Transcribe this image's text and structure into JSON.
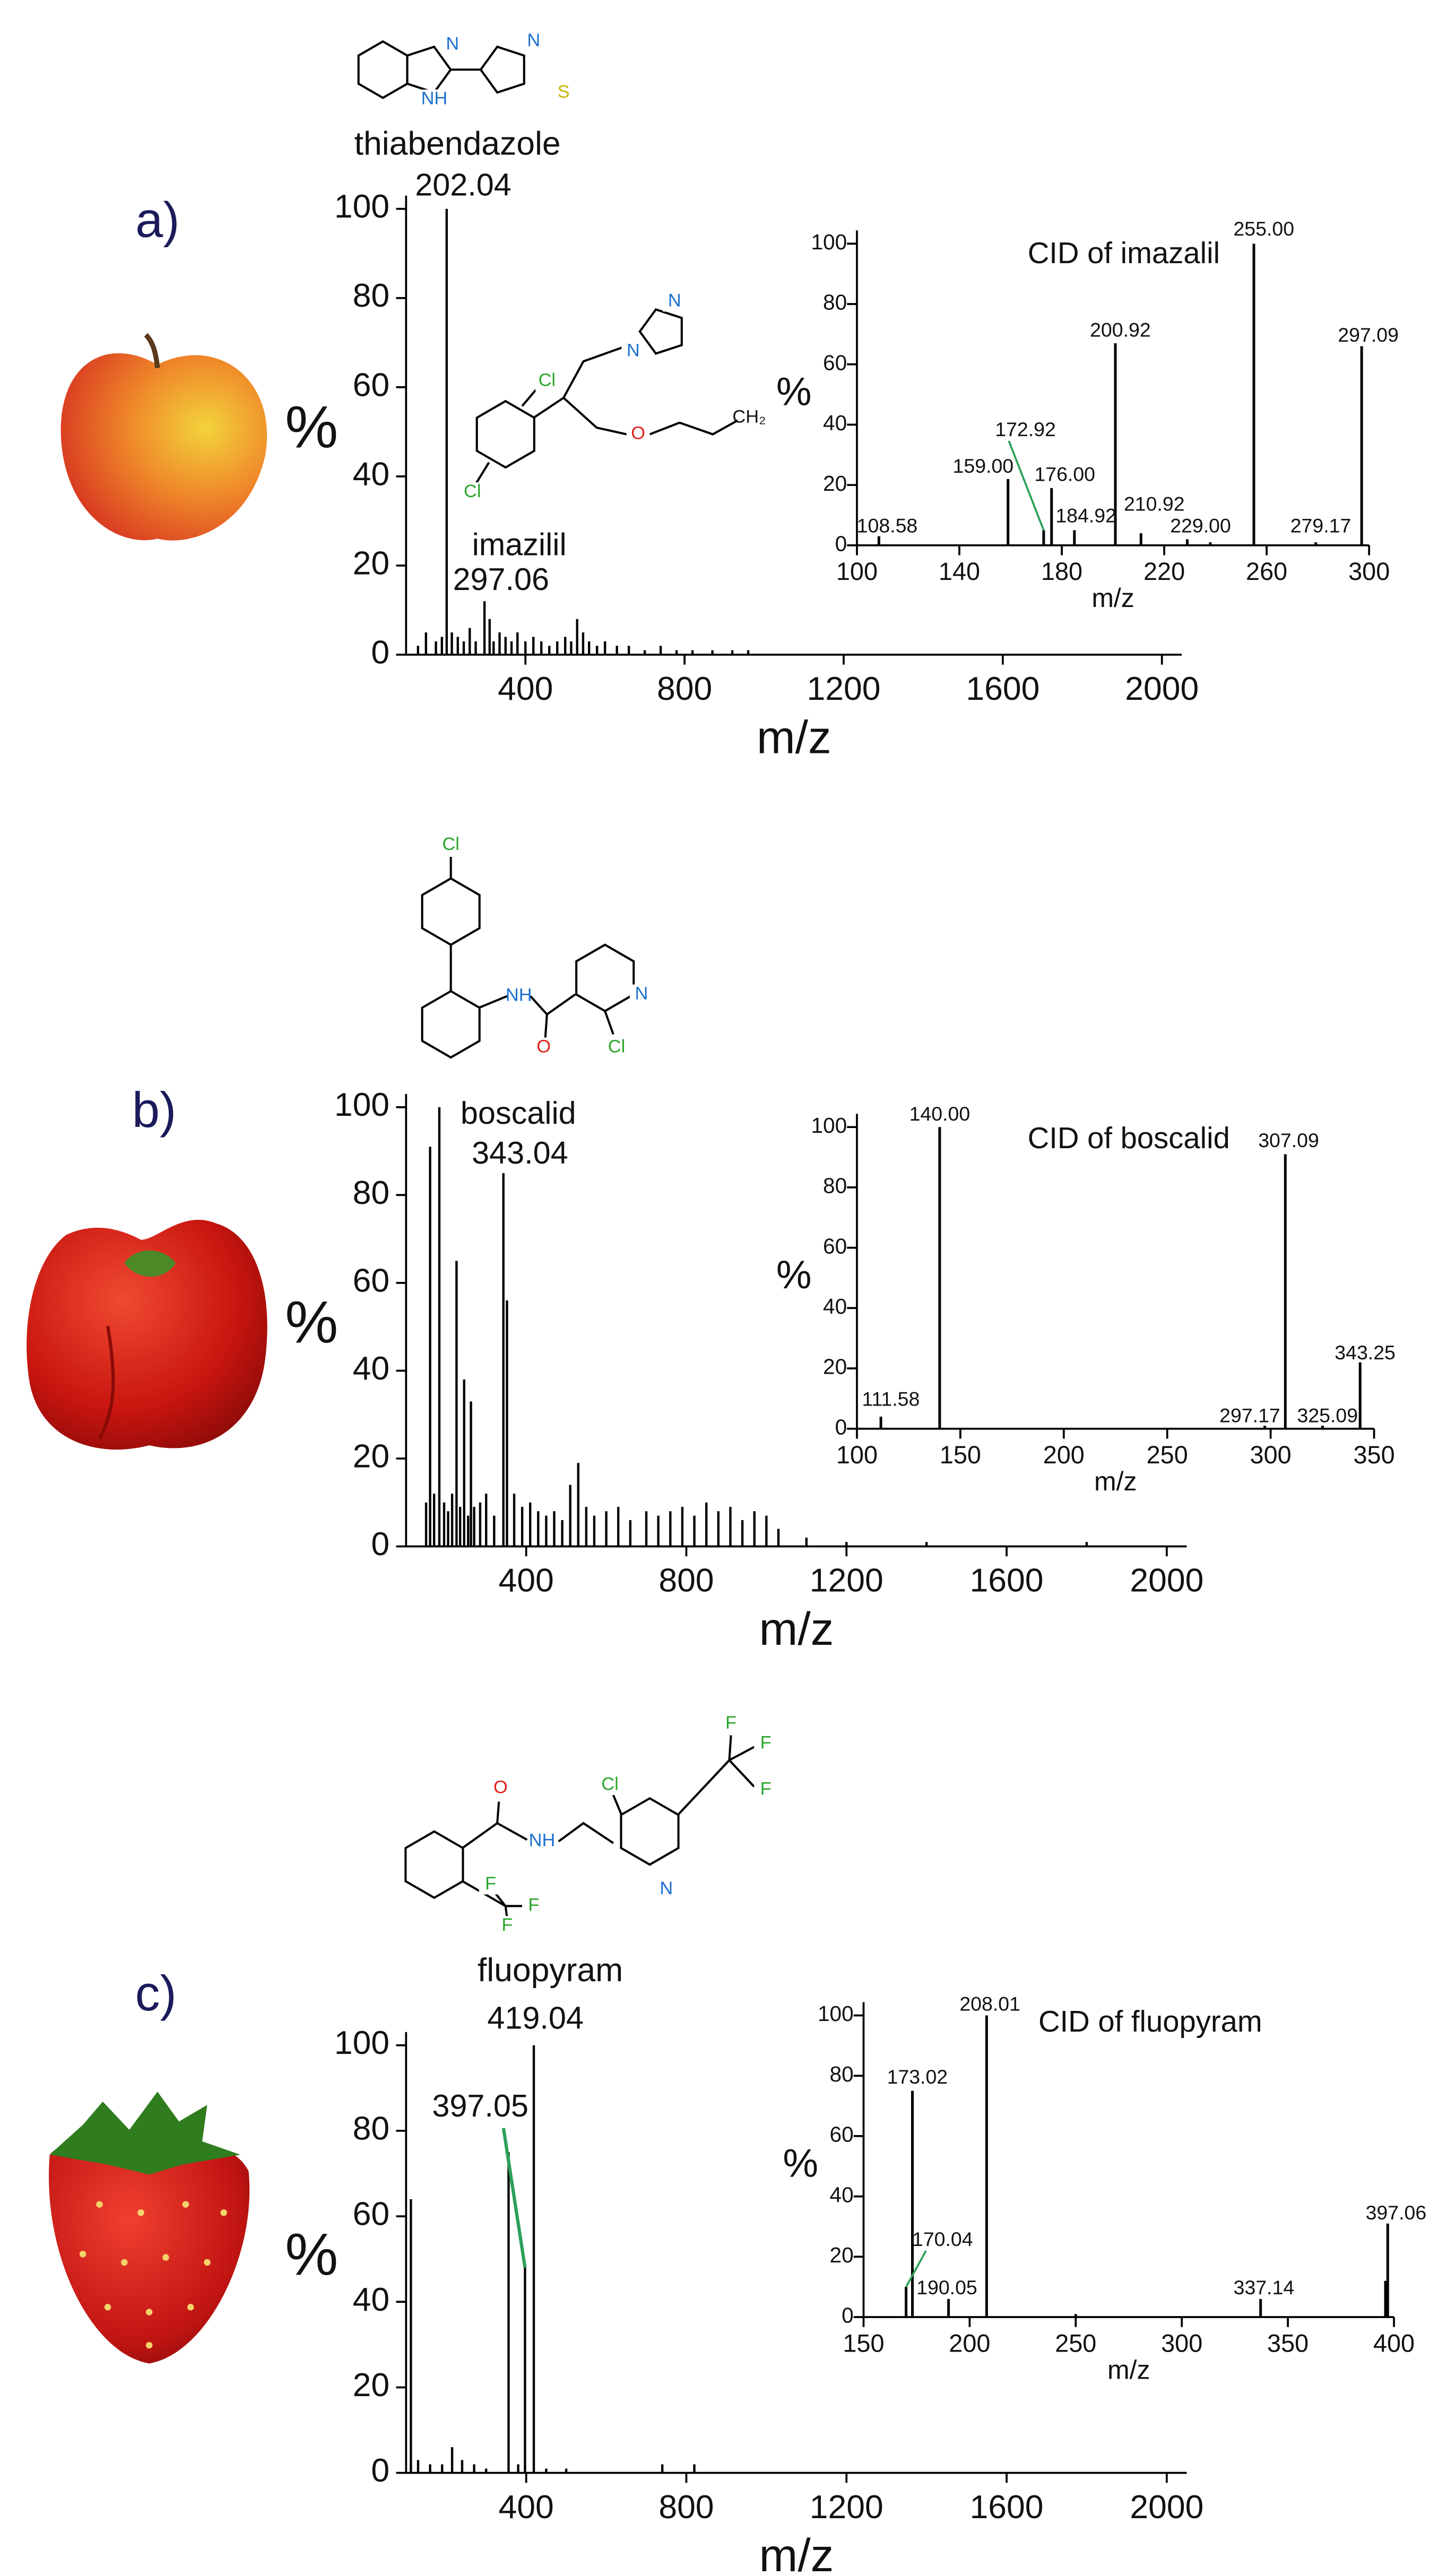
{
  "panels": [
    {
      "label": "a)",
      "compound": "thiabendazole",
      "structures": [
        {
          "atoms": [
            "N",
            "NH",
            "N",
            "S"
          ]
        },
        {
          "atoms": [
            "N",
            "N",
            "Cl",
            "Cl",
            "O",
            "CH₂"
          ]
        }
      ]
    },
    {
      "label": "b)",
      "structures": [
        {
          "atoms": [
            "Cl",
            "NH",
            "O",
            "N",
            "Cl"
          ]
        }
      ]
    },
    {
      "label": "c)",
      "compound": "fluopyram",
      "structures": [
        {
          "atoms": [
            "O",
            "NH",
            "Cl",
            "N",
            "F",
            "F",
            "F",
            "F",
            "F",
            "F"
          ]
        }
      ]
    }
  ],
  "chart_data": [
    {
      "type": "bar",
      "color": "#000000",
      "xlabel": "m/z",
      "ylabel": "%",
      "x": [
        130,
        150,
        175,
        190,
        202.04,
        215,
        230,
        245,
        260,
        275,
        297.06,
        310,
        320,
        335,
        350,
        365,
        380,
        400,
        420,
        440,
        460,
        480,
        500,
        515,
        530,
        545,
        560,
        580,
        600,
        630,
        660,
        700,
        740,
        780,
        820,
        870,
        920,
        960
      ],
      "values": [
        2,
        5,
        3,
        4,
        100,
        5,
        4,
        3,
        6,
        3,
        12,
        8,
        3,
        5,
        4,
        3,
        5,
        3,
        4,
        3,
        2,
        3,
        4,
        3,
        8,
        5,
        3,
        2,
        3,
        2,
        2,
        1,
        2,
        1,
        1,
        1,
        1,
        1
      ],
      "xlim": [
        100,
        2050
      ],
      "ylim": [
        0,
        100
      ],
      "xticks": [
        400,
        800,
        1200,
        1600,
        2000
      ],
      "yticks": [
        0,
        20,
        40,
        60,
        80,
        100
      ],
      "annotations": [
        {
          "label": "202.04",
          "x": 202.04
        },
        {
          "label": "imazilil",
          "x": 297.06
        },
        {
          "label": "297.06",
          "x": 297.06
        }
      ]
    },
    {
      "type": "bar",
      "color": "#000000",
      "title": "CID of imazalil",
      "xlabel": "m/z",
      "ylabel": "%",
      "x": [
        108.58,
        159,
        172.92,
        176,
        184.92,
        200.92,
        210.92,
        229,
        238,
        255,
        279.17,
        297.09
      ],
      "values": [
        3,
        22,
        5,
        19,
        5,
        67,
        4,
        2,
        1,
        100,
        1,
        66
      ],
      "xlim": [
        100,
        300
      ],
      "ylim": [
        0,
        100
      ],
      "xticks": [
        100,
        140,
        180,
        220,
        260,
        300
      ],
      "yticks": [
        0,
        20,
        40,
        60,
        80,
        100
      ],
      "annotations": [
        {
          "label": "108.58",
          "x": 108.58
        },
        {
          "label": "159.00",
          "x": 159
        },
        {
          "label": "172.92",
          "x": 172.92
        },
        {
          "label": "176.00",
          "x": 176
        },
        {
          "label": "184.92",
          "x": 184.92
        },
        {
          "label": "200.92",
          "x": 200.92
        },
        {
          "label": "210.92",
          "x": 210.92
        },
        {
          "label": "229.00",
          "x": 229
        },
        {
          "label": "255.00",
          "x": 255
        },
        {
          "label": "279.17",
          "x": 279.17
        },
        {
          "label": "297.09",
          "x": 297.09
        }
      ]
    },
    {
      "type": "bar",
      "color": "#000000",
      "xlabel": "m/z",
      "ylabel": "%",
      "x": [
        150,
        160,
        170,
        183,
        195,
        205,
        215,
        226,
        235,
        245,
        255,
        262,
        270,
        285,
        300,
        320,
        343.04,
        352,
        370,
        390,
        410,
        430,
        450,
        470,
        490,
        510,
        530,
        550,
        570,
        600,
        630,
        660,
        700,
        730,
        760,
        790,
        820,
        850,
        880,
        910,
        940,
        970,
        1000,
        1030,
        1100,
        1200,
        1400,
        1800
      ],
      "values": [
        10,
        91,
        12,
        100,
        10,
        8,
        12,
        65,
        9,
        38,
        7,
        33,
        9,
        10,
        12,
        7,
        85,
        56,
        12,
        9,
        10,
        8,
        7,
        8,
        6,
        14,
        19,
        9,
        7,
        8,
        9,
        6,
        8,
        7,
        8,
        9,
        7,
        10,
        8,
        9,
        6,
        8,
        7,
        4,
        2,
        1,
        1,
        1
      ],
      "xlim": [
        100,
        2050
      ],
      "ylim": [
        0,
        100
      ],
      "xticks": [
        400,
        800,
        1200,
        1600,
        2000
      ],
      "yticks": [
        0,
        20,
        40,
        60,
        80,
        100
      ],
      "annotations": [
        {
          "label": "boscalid",
          "x": 343.04
        },
        {
          "label": "343.04",
          "x": 343.04
        }
      ]
    },
    {
      "type": "bar",
      "color": "#000000",
      "title": "CID of boscalid",
      "xlabel": "m/z",
      "ylabel": "%",
      "x": [
        111.58,
        140,
        297.17,
        307.09,
        325.09,
        343.25
      ],
      "values": [
        4,
        100,
        1,
        91,
        1,
        22
      ],
      "xlim": [
        100,
        350
      ],
      "ylim": [
        0,
        100
      ],
      "xticks": [
        100,
        150,
        200,
        250,
        300,
        350
      ],
      "yticks": [
        0,
        20,
        40,
        60,
        80,
        100
      ],
      "annotations": [
        {
          "label": "111.58",
          "x": 111.58
        },
        {
          "label": "140.00",
          "x": 140
        },
        {
          "label": "297.17",
          "x": 297.17
        },
        {
          "label": "307.09",
          "x": 307.09
        },
        {
          "label": "325.09",
          "x": 325.09
        },
        {
          "label": "343.25",
          "x": 343.25
        }
      ]
    },
    {
      "type": "bar",
      "color": "#000000",
      "xlabel": "m/z",
      "ylabel": "%",
      "x": [
        112,
        130,
        160,
        190,
        215,
        240,
        270,
        300,
        356,
        380,
        397.05,
        419.04,
        450,
        500,
        740,
        820
      ],
      "values": [
        64,
        3,
        2,
        2,
        6,
        3,
        2,
        1,
        75,
        2,
        48,
        100,
        1,
        1,
        2,
        2
      ],
      "xlim": [
        100,
        2050
      ],
      "ylim": [
        0,
        100
      ],
      "xticks": [
        400,
        800,
        1200,
        1600,
        2000
      ],
      "yticks": [
        0,
        20,
        40,
        60,
        80,
        100
      ],
      "annotations": [
        {
          "label": "419.04",
          "x": 419.04
        },
        {
          "label": "397.05",
          "x": 397.05
        }
      ]
    },
    {
      "type": "bar",
      "color": "#000000",
      "title": "CID of fluopyram",
      "xlabel": "m/z",
      "ylabel": "%",
      "x": [
        170.04,
        173.02,
        190.05,
        208.01,
        250,
        337.14,
        396,
        397.06
      ],
      "values": [
        10,
        75,
        6,
        100,
        1,
        6,
        12,
        31
      ],
      "xlim": [
        150,
        400
      ],
      "ylim": [
        0,
        100
      ],
      "xticks": [
        150,
        200,
        250,
        300,
        350,
        400
      ],
      "yticks": [
        0,
        20,
        40,
        60,
        80,
        100
      ],
      "annotations": [
        {
          "label": "173.02",
          "x": 173.02
        },
        {
          "label": "170.04",
          "x": 170.04
        },
        {
          "label": "190.05",
          "x": 190.05
        },
        {
          "label": "208.01",
          "x": 208.01
        },
        {
          "label": "337.14",
          "x": 337.14
        },
        {
          "label": "397.06",
          "x": 397.06
        }
      ]
    }
  ]
}
